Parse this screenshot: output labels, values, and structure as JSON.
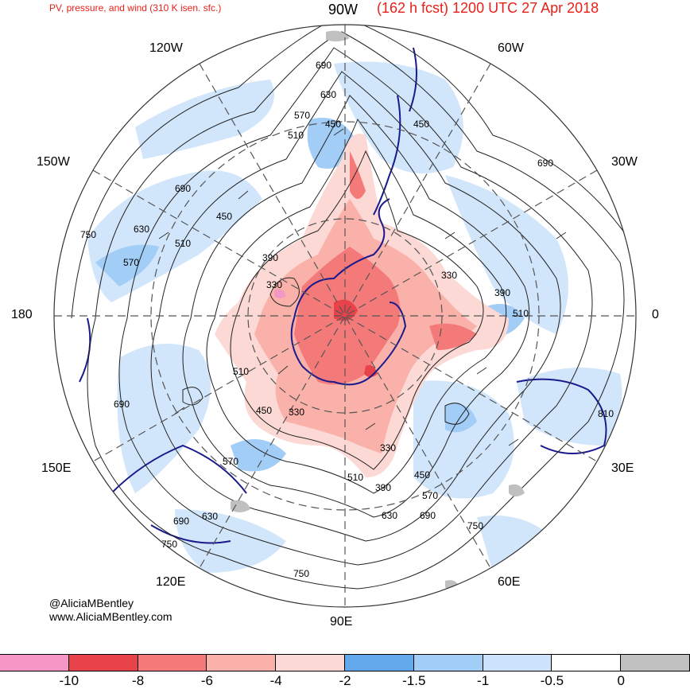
{
  "header": {
    "title_left": "PV, pressure, and wind (310 K isen. sfc.)",
    "title_right": "(162 h fcst) 1200 UTC 27 Apr 2018"
  },
  "longitudes": {
    "lon_90w": "90W",
    "lon_60w": "60W",
    "lon_30w": "30W",
    "lon_0": "0",
    "lon_30e": "30E",
    "lon_60e": "60E",
    "lon_90e": "90E",
    "lon_120e": "120E",
    "lon_150e": "150E",
    "lon_180": "180",
    "lon_150w": "150W",
    "lon_120w": "120W"
  },
  "credits": {
    "handle": "@AliciaMBentley",
    "website": "www.AliciaMBentley.com"
  },
  "pressure_labels": [
    "690",
    "630",
    "570",
    "510",
    "450",
    "750",
    "390",
    "330",
    "510",
    "450",
    "690",
    "570",
    "630",
    "450",
    "330",
    "390",
    "510",
    "690",
    "810",
    "750",
    "690",
    "630",
    "570",
    "450",
    "390",
    "330",
    "510",
    "510",
    "450",
    "330",
    "690",
    "570",
    "630",
    "750",
    "750",
    "690"
  ],
  "colors": {
    "pv_strong": "#e8434a",
    "pv_pink": "#f597c4",
    "pv_mid": "#f47a7a",
    "pv_light": "#f9b1aa",
    "pv_faint": "#fcd9d4",
    "neg_dark": "#64a8ec",
    "neg_mid": "#a2cdf7",
    "neg_light": "#cde3fb",
    "zero": "#ffffff",
    "gray": "#c0c0c0",
    "title_red": "#e8201a"
  },
  "colorbar": {
    "colors": [
      "#f597c4",
      "#e8434a",
      "#f47a7a",
      "#f9b1aa",
      "#fcd9d4",
      "#64a8ec",
      "#a2cdf7",
      "#cde3fb",
      "#ffffff",
      "#c0c0c0"
    ],
    "ticks": [
      "-10",
      "-8",
      "-6",
      "-4",
      "-2",
      "-1.5",
      "-1",
      "-0.5",
      "0"
    ]
  }
}
